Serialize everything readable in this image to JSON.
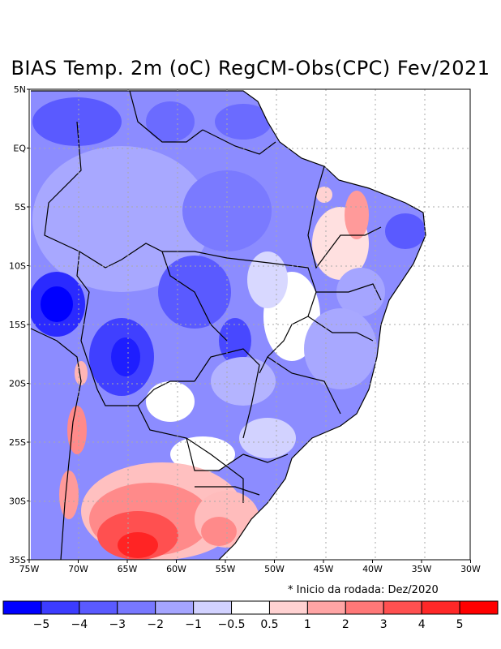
{
  "title": "BIAS Temp. 2m (oC) RegCM-Obs(CPC) Fev/2021",
  "note": "* Inicio da rodada: Dez/2020",
  "axes": {
    "lon_labels": [
      "75W",
      "70W",
      "65W",
      "60W",
      "55W",
      "50W",
      "45W",
      "40W",
      "35W",
      "30W"
    ],
    "lat_labels": [
      "5N",
      "EQ",
      "5S",
      "10S",
      "15S",
      "20S",
      "25S",
      "30S",
      "35S"
    ]
  },
  "colorbar": {
    "colors": [
      "#0000ff",
      "#3c3cff",
      "#5a5aff",
      "#7878ff",
      "#a5a5ff",
      "#d2d2ff",
      "#ffffff",
      "#ffd2d2",
      "#ffa5a5",
      "#ff7878",
      "#ff5050",
      "#ff2828",
      "#ff0000"
    ],
    "labels": [
      "−5",
      "−4",
      "−3",
      "−2",
      "−1",
      "−0.5",
      "0.5",
      "1",
      "2",
      "3",
      "4",
      "5"
    ]
  },
  "legend_colors": {
    "strong_cold": "#1a1aff",
    "cold": "#6b6bff",
    "mild_cold": "#a5a5ff",
    "neutral": "#ffffff",
    "warm": "#ff8a8a",
    "hot": "#ff3b3b"
  }
}
